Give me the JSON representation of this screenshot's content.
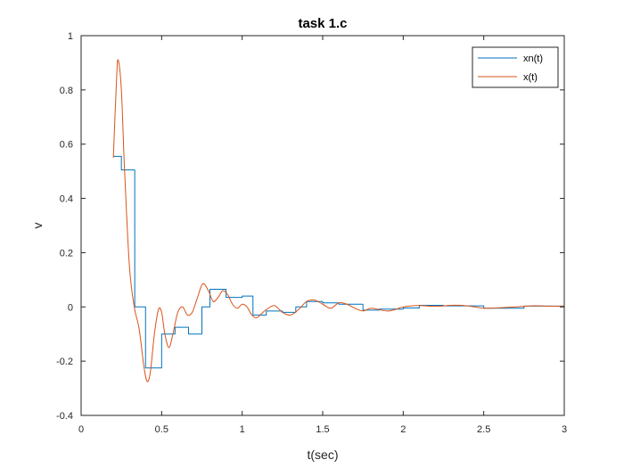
{
  "chart_data": {
    "type": "line",
    "title": "task 1.c",
    "xlabel": "t(sec)",
    "ylabel": "v",
    "xlim": [
      0,
      3
    ],
    "ylim": [
      -0.4,
      1
    ],
    "xticks": [
      0,
      0.5,
      1,
      1.5,
      2,
      2.5,
      3
    ],
    "xtick_labels": [
      "0",
      "0.5",
      "1",
      "1.5",
      "2",
      "2.5",
      "3"
    ],
    "yticks": [
      -0.4,
      -0.2,
      0,
      0.2,
      0.4,
      0.6,
      0.8,
      1
    ],
    "ytick_labels": [
      "-0.4",
      "-0.2",
      "0",
      "0.2",
      "0.4",
      "0.6",
      "0.8",
      "1"
    ],
    "grid": false,
    "legend_position": "top-right",
    "series": [
      {
        "name": "xn(t)",
        "color": "#0072BD",
        "style": "stairs",
        "x": [
          0.2,
          0.25,
          0.333,
          0.4,
          0.5,
          0.583,
          0.667,
          0.75,
          0.8,
          0.9,
          1.0,
          1.067,
          1.15,
          1.25,
          1.333,
          1.4,
          1.5,
          1.6,
          1.75,
          1.85,
          2.0,
          2.1,
          2.25,
          2.5,
          2.75,
          3.0
        ],
        "y": [
          0.555,
          0.505,
          0.0,
          -0.225,
          -0.1,
          -0.075,
          -0.1,
          0.0,
          0.065,
          0.035,
          0.04,
          -0.03,
          -0.015,
          -0.02,
          0.0,
          0.02,
          0.015,
          0.01,
          -0.012,
          -0.008,
          -0.004,
          0.006,
          0.004,
          -0.005,
          0.003,
          0.003
        ]
      },
      {
        "name": "x(t)",
        "color": "#D95319",
        "style": "line",
        "x": [
          0.2,
          0.22,
          0.23,
          0.25,
          0.27,
          0.3,
          0.33,
          0.36,
          0.39,
          0.41,
          0.43,
          0.455,
          0.48,
          0.5,
          0.52,
          0.545,
          0.57,
          0.6,
          0.63,
          0.66,
          0.69,
          0.72,
          0.755,
          0.79,
          0.82,
          0.85,
          0.88,
          0.91,
          0.94,
          0.97,
          1.0,
          1.03,
          1.06,
          1.09,
          1.12,
          1.15,
          1.2,
          1.25,
          1.3,
          1.35,
          1.4,
          1.45,
          1.5,
          1.55,
          1.6,
          1.65,
          1.7,
          1.75,
          1.8,
          1.85,
          1.9,
          1.95,
          2.0,
          2.1,
          2.2,
          2.3,
          2.4,
          2.5,
          2.6,
          2.7,
          2.8,
          2.9,
          3.0
        ],
        "y": [
          0.55,
          0.84,
          0.91,
          0.8,
          0.5,
          0.15,
          0.0,
          -0.08,
          -0.22,
          -0.275,
          -0.24,
          -0.1,
          -0.01,
          -0.02,
          -0.1,
          -0.15,
          -0.1,
          -0.02,
          0.0,
          -0.03,
          -0.02,
          0.03,
          0.085,
          0.06,
          0.02,
          0.035,
          0.06,
          0.045,
          0.01,
          -0.005,
          0.01,
          0.0,
          -0.03,
          -0.04,
          -0.025,
          -0.01,
          0.005,
          -0.02,
          -0.03,
          -0.01,
          0.02,
          0.025,
          0.01,
          -0.005,
          0.015,
          0.01,
          -0.005,
          -0.015,
          -0.005,
          -0.01,
          -0.015,
          -0.01,
          0.0,
          0.005,
          0.002,
          0.006,
          0.004,
          -0.005,
          -0.003,
          0.0,
          0.004,
          0.003,
          0.002
        ]
      }
    ]
  }
}
